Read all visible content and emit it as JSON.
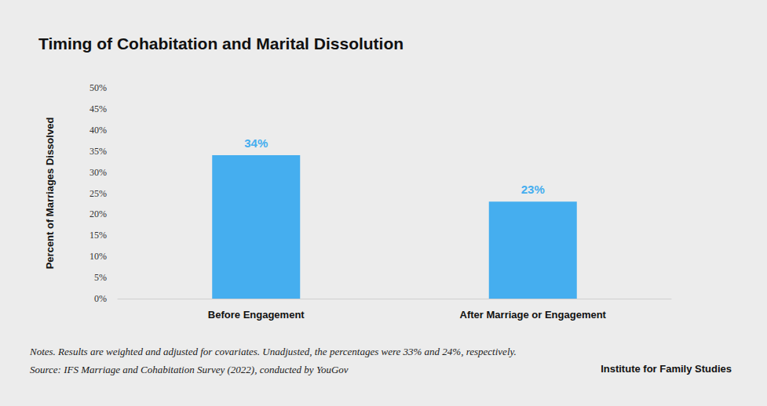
{
  "chart_data": {
    "type": "bar",
    "title": "Timing of Cohabitation and Marital Dissolution",
    "y_label": "Percent of Marriages Dissolved",
    "categories": [
      "Before Engagement",
      "After Marriage or Engagement"
    ],
    "values": [
      34,
      23
    ],
    "value_labels": [
      "34%",
      "23%"
    ],
    "color": "#45aeef",
    "ylim": [
      0,
      50
    ],
    "yticks": [
      {
        "value": 0,
        "label": "0%"
      },
      {
        "value": 5,
        "label": "5%"
      },
      {
        "value": 10,
        "label": "10%"
      },
      {
        "value": 15,
        "label": "15%"
      },
      {
        "value": 20,
        "label": "20%"
      },
      {
        "value": 25,
        "label": "25%"
      },
      {
        "value": 30,
        "label": "30%"
      },
      {
        "value": 35,
        "label": "35%"
      },
      {
        "value": 40,
        "label": "40%"
      },
      {
        "value": 45,
        "label": "45%"
      },
      {
        "value": 50,
        "label": "50%"
      }
    ],
    "grid": false,
    "data_labels": true,
    "note": "Notes. Results are weighted and adjusted for covariates. Unadjusted, the percentages were 33% and 24%, respectively.",
    "source": "Source: IFS Marriage and Cohabitation Survey (2022), conducted by YouGov",
    "credit": "Institute for Family Studies"
  }
}
